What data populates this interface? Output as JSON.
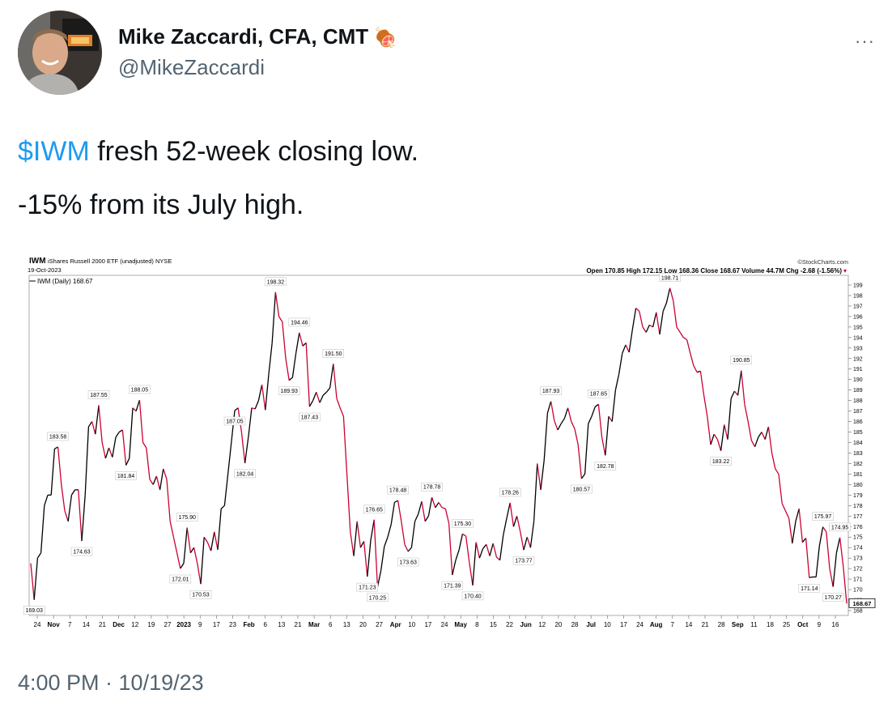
{
  "author": {
    "name": "Mike Zaccardi, CFA, CMT",
    "emoji": "🍖",
    "handle": "@MikeZaccardi"
  },
  "more_menu": "···",
  "tweet": {
    "cashtag": "$IWM",
    "line1_rest": " fresh 52-week closing low.",
    "line2": "-15% from its July high."
  },
  "timestamp": "4:00 PM · 10/19/23",
  "chart_header": {
    "symbol": "IWM",
    "description": "iShares Russell 2000 ETF (unadjusted) NYSE",
    "date": "19-Oct-2023",
    "source": "©StockCharts.com",
    "ohlc": "Open 170.85  High 172.15  Low 168.36  Close 168.67  Volume 44.7M  Chg -2.68 (-1.56%)",
    "legend": "IWM (Daily) 168.67",
    "last_label": "168.67"
  },
  "chart_data": {
    "type": "line",
    "title": "IWM iShares Russell 2000 ETF (unadjusted) NYSE",
    "ylim": [
      168,
      199
    ],
    "y_ticks": [
      168,
      169,
      170,
      171,
      172,
      173,
      174,
      175,
      176,
      177,
      178,
      179,
      180,
      181,
      182,
      183,
      184,
      185,
      186,
      187,
      188,
      189,
      190,
      191,
      192,
      193,
      194,
      195,
      196,
      197,
      198,
      199
    ],
    "x_ticks": [
      "24",
      "Nov",
      "7",
      "14",
      "21",
      "Dec",
      "12",
      "19",
      "27",
      "2023",
      "9",
      "17",
      "23",
      "Feb",
      "6",
      "13",
      "21",
      "Mar",
      "6",
      "13",
      "20",
      "27",
      "Apr",
      "10",
      "17",
      "24",
      "May",
      "8",
      "15",
      "22",
      "Jun",
      "12",
      "20",
      "28",
      "Jul",
      "10",
      "17",
      "24",
      "Aug",
      "7",
      "14",
      "21",
      "28",
      "Sep",
      "11",
      "18",
      "25",
      "Oct",
      "9",
      "16"
    ],
    "series": [
      {
        "values": [
          172.5,
          169.03,
          173,
          173.5,
          178,
          179,
          179,
          183.4,
          183.58,
          180,
          177.5,
          176.5,
          179,
          179.5,
          179.5,
          174.63,
          179,
          185.5,
          186,
          184.8,
          187.55,
          184,
          182.5,
          183.5,
          182.6,
          184.5,
          185,
          185.2,
          181.84,
          182.5,
          187.3,
          187,
          188.05,
          184,
          183.5,
          180.5,
          180,
          180.8,
          179.5,
          181.5,
          180.5,
          176.5,
          175,
          173.5,
          172.01,
          172.5,
          175.9,
          173.5,
          174,
          172.5,
          170.53,
          175,
          174.5,
          173.7,
          175.5,
          173.8,
          177.7,
          178,
          181,
          184,
          187.05,
          187.3,
          185,
          182.04,
          184.5,
          187.3,
          187.2,
          188,
          189.5,
          187.1,
          190.5,
          193.5,
          198.32,
          196,
          195.5,
          192,
          189.93,
          190.2,
          192.5,
          194.46,
          193.2,
          193.5,
          187.43,
          188,
          188.8,
          187.8,
          188.5,
          188.8,
          189.2,
          191.5,
          188.2,
          187.3,
          186.5,
          181,
          175.5,
          173.2,
          176.5,
          174,
          174.6,
          171.23,
          174.7,
          176.65,
          170.25,
          171.8,
          174.1,
          175,
          176.2,
          178.3,
          178.48,
          176.5,
          174.3,
          173.63,
          174,
          176.5,
          177.2,
          178.4,
          176.5,
          177,
          178.78,
          177.8,
          178.3,
          177.8,
          177.7,
          176.3,
          171.39,
          172.8,
          173.8,
          175.3,
          175.1,
          172.6,
          170.4,
          174.5,
          173,
          173.9,
          174.3,
          173.2,
          174.4,
          173.1,
          172.8,
          175.2,
          176.8,
          178.26,
          176,
          177,
          175.5,
          173.77,
          175,
          174,
          176.5,
          182,
          179.5,
          182.3,
          186.8,
          187.93,
          186.1,
          185.2,
          185.8,
          186.3,
          187.3,
          186,
          185.3,
          183.8,
          180.57,
          181,
          185.8,
          186.5,
          187.4,
          187.65,
          184.5,
          182.78,
          186.5,
          186,
          189,
          190.5,
          192.5,
          193.3,
          192.6,
          194.8,
          196.8,
          196.5,
          195,
          194.5,
          195.2,
          195,
          196.4,
          194.3,
          196.5,
          197.3,
          198.71,
          197.5,
          195,
          194.5,
          194,
          193.8,
          192.5,
          191.3,
          190.7,
          190.8,
          188.5,
          186.5,
          183.8,
          184.8,
          184.3,
          183.22,
          185.7,
          184.3,
          188.2,
          188.9,
          188.5,
          190.85,
          187.6,
          186,
          184.2,
          183.6,
          184.5,
          185,
          184.3,
          185.5,
          183,
          181.5,
          181,
          178.2,
          177.5,
          176.8,
          174.4,
          176.5,
          177.7,
          174.5,
          174.9,
          171.14,
          171.2,
          171.2,
          174.2,
          175.97,
          175.5,
          172,
          170.27,
          173.5,
          174.95,
          172.2,
          168.67
        ]
      }
    ],
    "annotations": [
      {
        "label": "169.03",
        "value": 169.03
      },
      {
        "label": "183.58",
        "value": 183.58
      },
      {
        "label": "174.63",
        "value": 174.63
      },
      {
        "label": "187.55",
        "value": 187.55
      },
      {
        "label": "181.84",
        "value": 181.84
      },
      {
        "label": "188.05",
        "value": 188.05
      },
      {
        "label": "172.01",
        "value": 172.01
      },
      {
        "label": "175.90",
        "value": 175.9
      },
      {
        "label": "170.53",
        "value": 170.53
      },
      {
        "label": "187.05",
        "value": 187.05
      },
      {
        "label": "182.04",
        "value": 182.04
      },
      {
        "label": "198.32",
        "value": 198.32
      },
      {
        "label": "189.93",
        "value": 189.93
      },
      {
        "label": "194.46",
        "value": 194.46
      },
      {
        "label": "187.43",
        "value": 187.43
      },
      {
        "label": "191.50",
        "value": 191.5
      },
      {
        "label": "171.23",
        "value": 171.23
      },
      {
        "label": "176.65",
        "value": 176.65
      },
      {
        "label": "170.25",
        "value": 170.25
      },
      {
        "label": "178.48",
        "value": 178.48
      },
      {
        "label": "173.63",
        "value": 173.63
      },
      {
        "label": "178.78",
        "value": 178.78
      },
      {
        "label": "171.39",
        "value": 171.39
      },
      {
        "label": "175.30",
        "value": 175.3
      },
      {
        "label": "170.40",
        "value": 170.4
      },
      {
        "label": "178.26",
        "value": 178.26
      },
      {
        "label": "173.77",
        "value": 173.77
      },
      {
        "label": "187.93",
        "value": 187.93
      },
      {
        "label": "180.57",
        "value": 180.57
      },
      {
        "label": "187.65",
        "value": 187.65
      },
      {
        "label": "182.78",
        "value": 182.78
      },
      {
        "label": "198.71",
        "value": 198.71
      },
      {
        "label": "183.22",
        "value": 183.22
      },
      {
        "label": "190.85",
        "value": 190.85
      },
      {
        "label": "171.14",
        "value": 171.14
      },
      {
        "label": "175.97",
        "value": 175.97
      },
      {
        "label": "170.27",
        "value": 170.27
      },
      {
        "label": "174.95",
        "value": 174.95
      }
    ],
    "grid": false,
    "legend": "top-left",
    "colors": {
      "up": "#000000",
      "down": "#cc0033"
    }
  }
}
